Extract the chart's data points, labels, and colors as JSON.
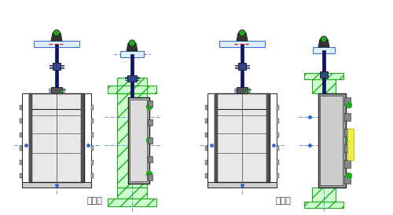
{
  "label_left": "靠壁式",
  "label_right": "附壁式",
  "bg_color": "#ffffff",
  "dark": "#222222",
  "gray": "#888888",
  "lgray": "#cccccc",
  "dgray": "#555555",
  "blue": "#3366cc",
  "green": "#22aa22",
  "red": "#cc2222",
  "navy": "#111166",
  "white": "#ffffff"
}
